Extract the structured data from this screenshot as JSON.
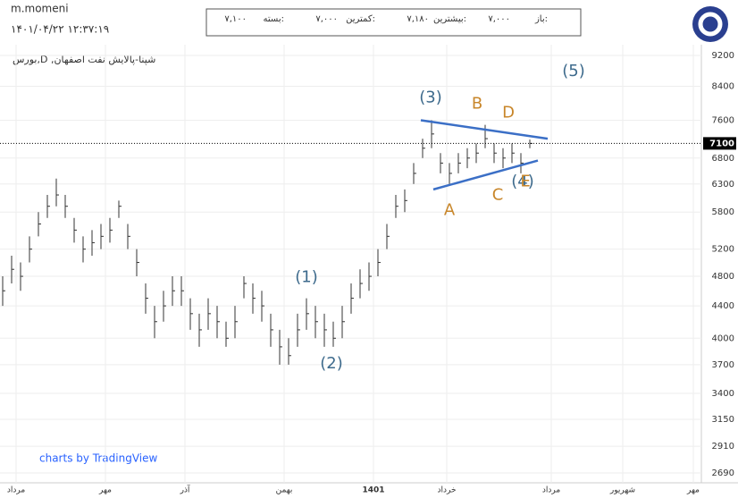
{
  "header": {
    "user": "m.momeni",
    "datetime": "۱۴۰۱/۰۴/۲۲ ۱۲:۳۷:۱۹",
    "quote": [
      [
        "باز:",
        "۷,۰۰۰"
      ],
      [
        "بیشترین:",
        "۷,۱۸۰"
      ],
      [
        "کمترین:",
        "۷,۰۰۰"
      ],
      [
        "بسته:",
        "۷,۱۰۰"
      ]
    ],
    "symbol": "بورس,D ,شپنا-پالایش نفت اصفهان",
    "footer": "charts by TradingView"
  },
  "chart_data": {
    "type": "ohlc",
    "log_scale": true,
    "color": "#333333",
    "ylim": [
      2613,
      9495
    ],
    "yticks": [
      2690,
      2910,
      3150,
      3400,
      3700,
      4000,
      4400,
      4800,
      5200,
      5800,
      6300,
      6800,
      7600,
      8400,
      9200
    ],
    "xlim": [
      -0.3,
      78.2
    ],
    "xticks": [
      {
        "value": 1.5,
        "label": "مرداد"
      },
      {
        "value": 11.5,
        "label": "مهر"
      },
      {
        "value": 20.4,
        "label": "آذر"
      },
      {
        "value": 31.5,
        "label": "بهمن"
      },
      {
        "value": 41.5,
        "label": "1401"
      },
      {
        "value": 49.7,
        "label": "خرداد"
      },
      {
        "value": 61.4,
        "label": "مرداد"
      },
      {
        "value": 69.4,
        "label": "شهریور"
      },
      {
        "value": 77.3,
        "label": "مهر"
      }
    ],
    "close": [
      4600,
      4900,
      4800,
      5200,
      5600,
      5900,
      6100,
      5900,
      5500,
      5200,
      5300,
      5400,
      5500,
      5900,
      5400,
      5000,
      4500,
      4200,
      4400,
      4600,
      4600,
      4300,
      4100,
      4300,
      4200,
      4000,
      4200,
      4700,
      4500,
      4400,
      4100,
      3900,
      3800,
      4100,
      4300,
      4200,
      4100,
      4000,
      4200,
      4500,
      4700,
      4800,
      5000,
      5400,
      5900,
      6000,
      6500,
      7000,
      7300,
      6700,
      6500,
      6700,
      6800,
      6900,
      7200,
      6900,
      6800,
      6900,
      6700,
      7100
    ],
    "high": [
      4800,
      5100,
      5000,
      5400,
      5800,
      6100,
      6400,
      6100,
      5700,
      5400,
      5500,
      5600,
      5700,
      6000,
      5600,
      5200,
      4700,
      4400,
      4600,
      4800,
      4800,
      4500,
      4300,
      4500,
      4400,
      4200,
      4400,
      4800,
      4700,
      4600,
      4300,
      4100,
      4000,
      4300,
      4500,
      4400,
      4300,
      4200,
      4400,
      4700,
      4900,
      5000,
      5200,
      5600,
      6100,
      6200,
      6700,
      7200,
      7600,
      6900,
      6700,
      6900,
      7000,
      7100,
      7500,
      7100,
      7000,
      7100,
      6900,
      7180
    ],
    "low": [
      4400,
      4700,
      4600,
      5000,
      5400,
      5700,
      5900,
      5700,
      5300,
      5000,
      5100,
      5200,
      5300,
      5700,
      5200,
      4800,
      4300,
      4000,
      4200,
      4400,
      4400,
      4100,
      3900,
      4100,
      4000,
      3900,
      4000,
      4500,
      4300,
      4200,
      3900,
      3700,
      3700,
      3900,
      4100,
      4000,
      3900,
      3900,
      4000,
      4300,
      4500,
      4600,
      4800,
      5200,
      5700,
      5800,
      6300,
      6800,
      7000,
      6500,
      6300,
      6500,
      6600,
      6700,
      7000,
      6700,
      6600,
      6700,
      6500,
      7000
    ],
    "last_price": {
      "value": 7100,
      "label": "7100"
    },
    "trendlines": [
      {
        "color": "#3b6fc6",
        "x": [
          46.8,
          61
        ],
        "y": [
          7600,
          7200
        ]
      },
      {
        "color": "#3b6fc6",
        "x": [
          48.2,
          59.9
        ],
        "y": [
          6200,
          6750
        ]
      }
    ],
    "annotations": [
      {
        "text": "(1)",
        "x": 34,
        "y": 4784,
        "color": "#3d6a8c"
      },
      {
        "text": "(2)",
        "x": 36.8,
        "y": 3710,
        "color": "#3d6a8c"
      },
      {
        "text": "(3)",
        "x": 47.9,
        "y": 8121,
        "color": "#3d6a8c"
      },
      {
        "text": "(5)",
        "x": 63.9,
        "y": 8775,
        "color": "#3d6a8c"
      },
      {
        "text": "A",
        "x": 50,
        "y": 5823,
        "color": "#c8862a"
      },
      {
        "text": "B",
        "x": 53.1,
        "y": 7972,
        "color": "#c8862a"
      },
      {
        "text": "C",
        "x": 55.4,
        "y": 6089,
        "color": "#c8862a"
      },
      {
        "text": "D",
        "x": 56.6,
        "y": 7764,
        "color": "#c8862a"
      },
      {
        "text": "(4)",
        "x": 58.2,
        "y": 6340,
        "color": "#3d6a8c"
      },
      {
        "text": "E",
        "x": 58.5,
        "y": 6340,
        "color": "#c8862a"
      }
    ]
  }
}
